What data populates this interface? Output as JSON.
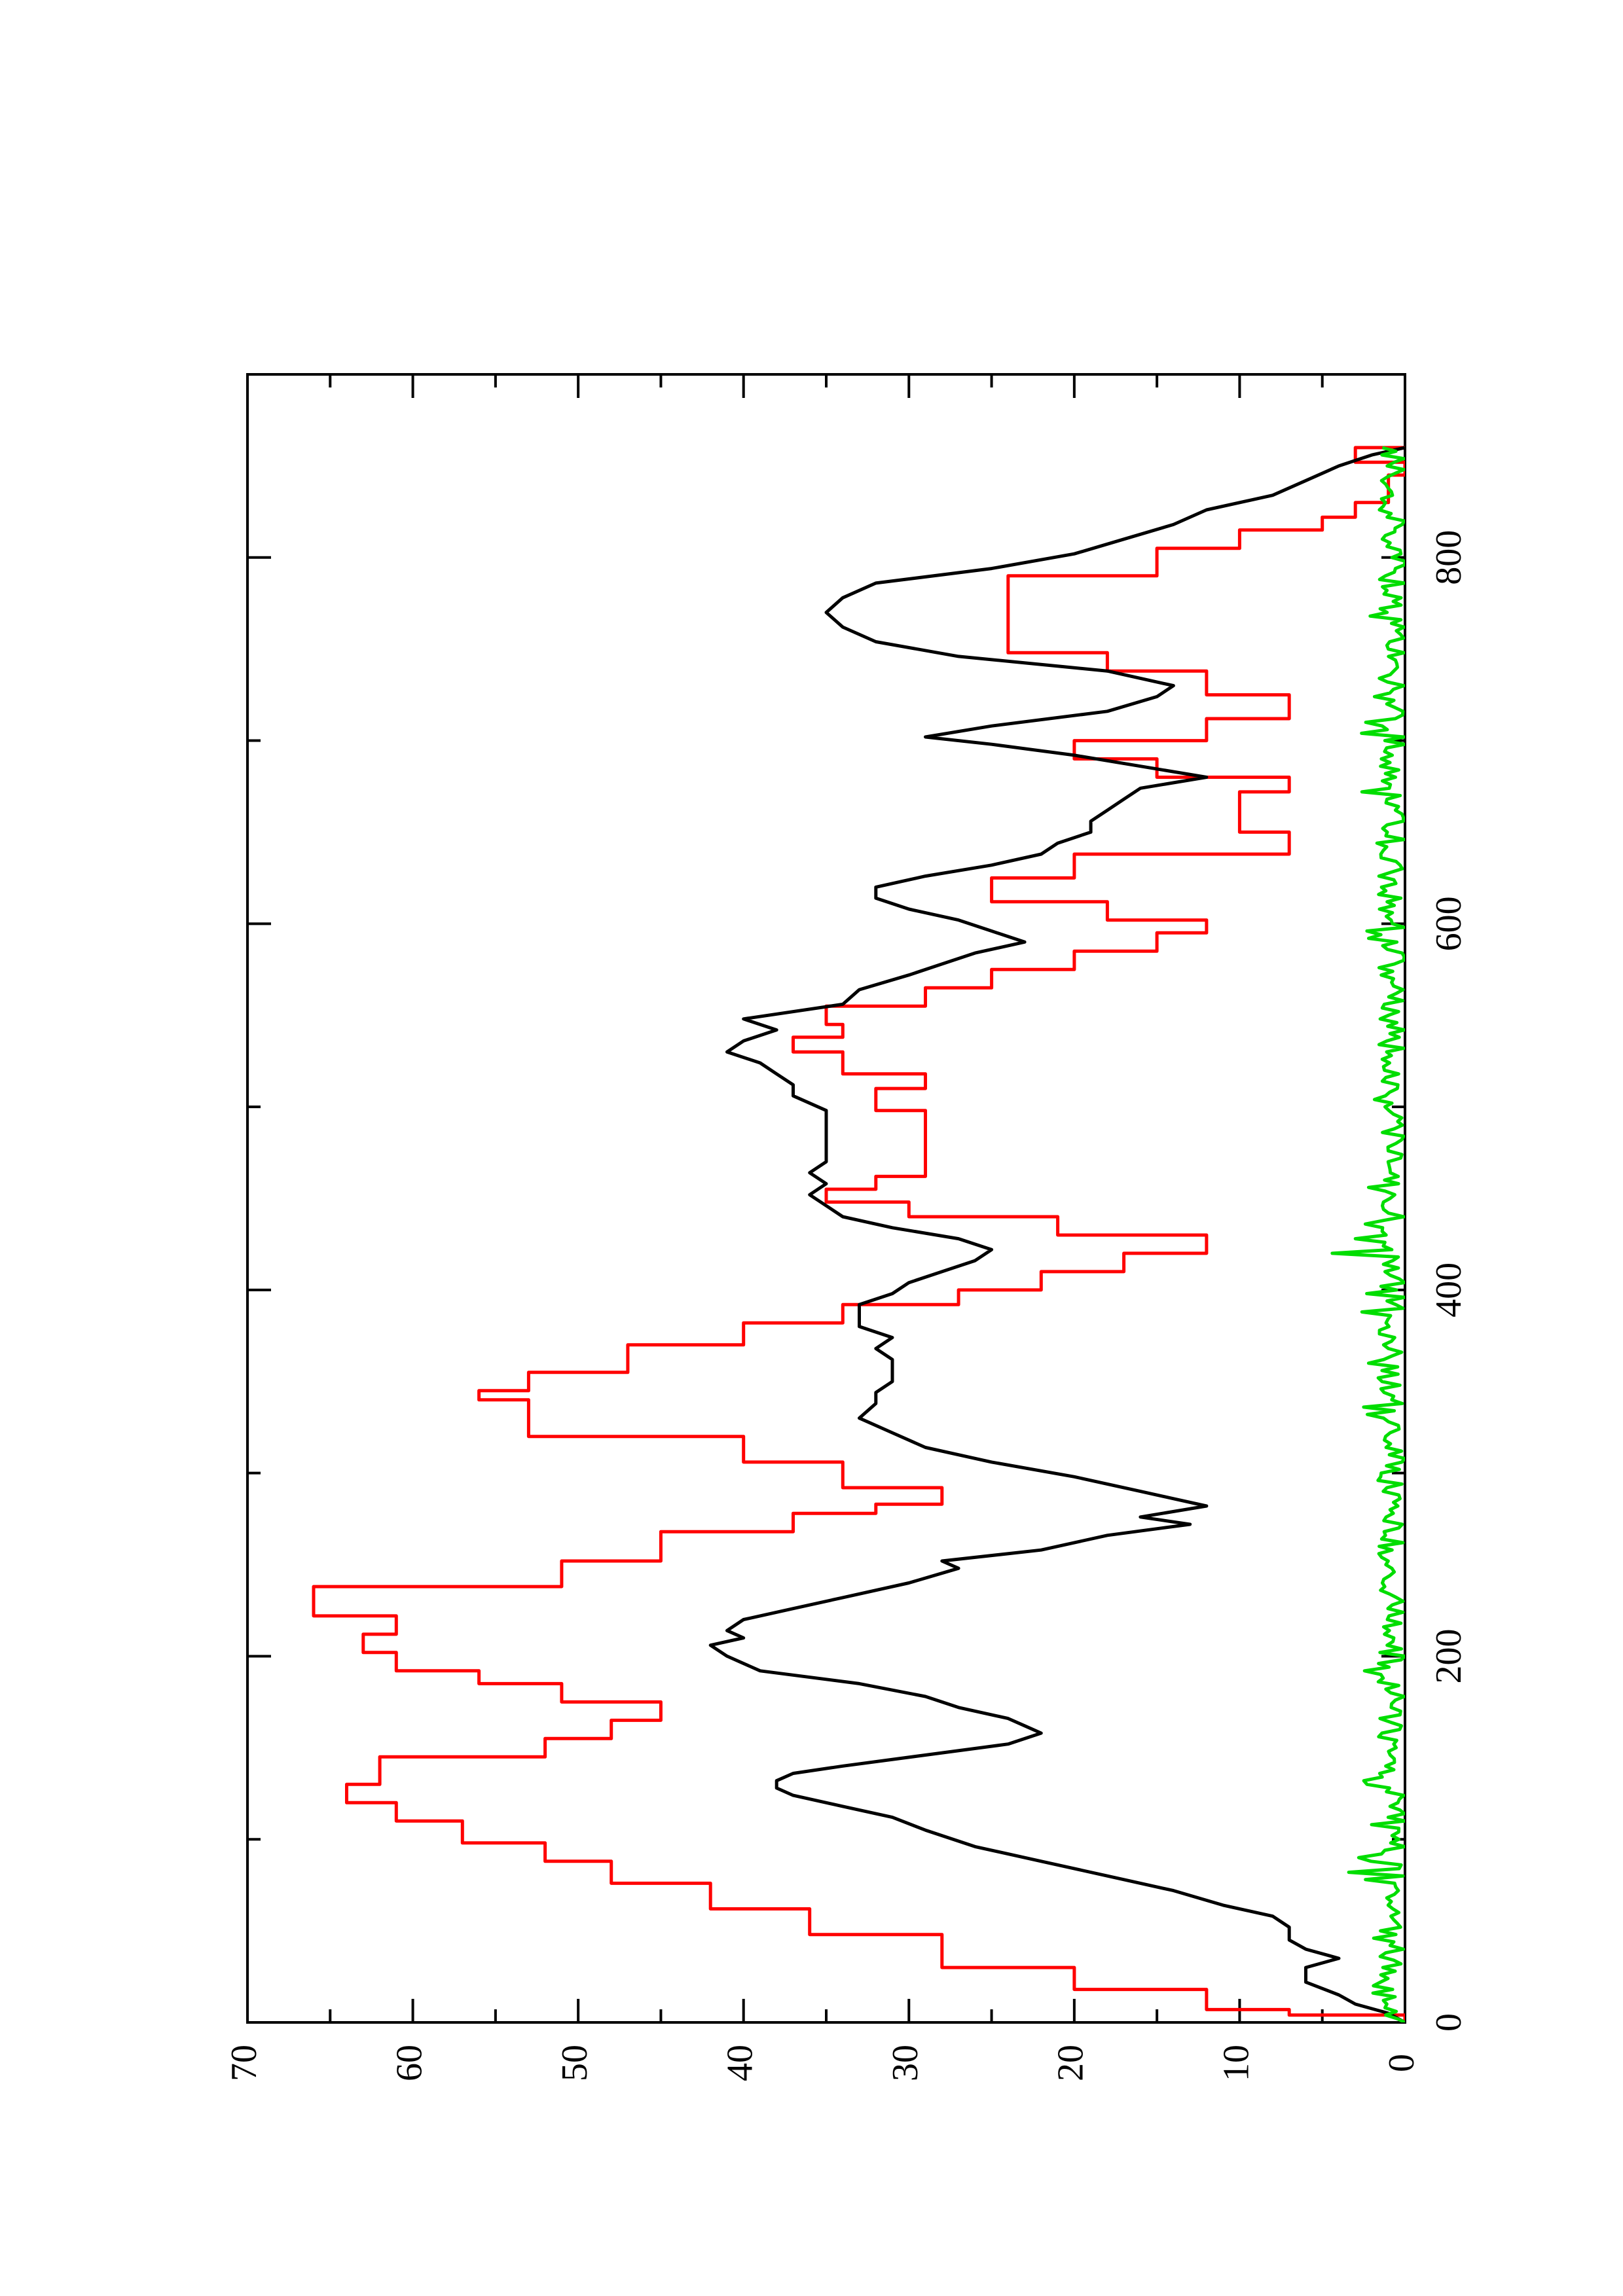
{
  "chart_data": {
    "type": "line",
    "orientation": "rotated-90-ccw",
    "title": "",
    "xlabel": "",
    "ylabel": "",
    "grid": false,
    "legend": "none",
    "xlim": [
      0,
      900
    ],
    "ylim": [
      0,
      70
    ],
    "x_ticks": [
      0,
      200,
      400,
      600,
      800
    ],
    "x_tick_labels": [
      "0",
      "200",
      "400",
      "600",
      "800"
    ],
    "x_minor_ticks": [
      100,
      300,
      500,
      700
    ],
    "y_ticks": [
      0,
      10,
      20,
      30,
      40,
      50,
      60,
      70
    ],
    "y_tick_labels": [
      "0",
      "10",
      "20",
      "30",
      "40",
      "50",
      "60",
      "70"
    ],
    "y_minor_ticks": [
      5,
      15,
      25,
      35,
      45,
      55,
      65
    ],
    "series": [
      {
        "color": "#ff0000",
        "step": true,
        "x": [
          0,
          4,
          7,
          18,
          30,
          48,
          62,
          76,
          88,
          98,
          110,
          120,
          130,
          145,
          155,
          165,
          175,
          185,
          192,
          202,
          212,
          222,
          238,
          252,
          268,
          278,
          283,
          292,
          306,
          320,
          340,
          345,
          355,
          370,
          382,
          392,
          400,
          410,
          420,
          430,
          440,
          448,
          455,
          462,
          470,
          478,
          485,
          498,
          510,
          518,
          530,
          538,
          545,
          555,
          565,
          575,
          585,
          595,
          602,
          612,
          625,
          638,
          650,
          660,
          672,
          680,
          690,
          700,
          712,
          725,
          738,
          748,
          760,
          775,
          790,
          805,
          815,
          822,
          830,
          845,
          852,
          860
        ],
        "y": [
          0,
          7,
          12,
          20,
          28,
          36,
          42,
          48,
          52,
          57,
          61,
          64,
          62,
          52,
          48,
          45,
          51,
          56,
          61,
          63,
          61,
          66,
          51,
          45,
          37,
          32,
          28,
          34,
          40,
          53,
          56,
          53,
          47,
          40,
          34,
          27,
          22,
          17,
          12,
          21,
          30,
          35,
          32,
          29,
          29,
          29,
          29,
          32,
          29,
          34,
          37,
          34,
          35,
          29,
          25,
          20,
          15,
          12,
          18,
          25,
          20,
          7,
          10,
          10,
          7,
          15,
          20,
          12,
          7,
          12,
          18,
          24,
          24,
          24,
          15,
          10,
          5,
          3,
          1,
          0,
          3,
          0
        ]
      },
      {
        "color": "#000000",
        "step": false,
        "x": [
          0,
          5,
          10,
          15,
          22,
          30,
          35,
          40,
          45,
          52,
          58,
          64,
          72,
          80,
          88,
          96,
          105,
          112,
          118,
          124,
          128,
          132,
          136,
          140,
          146,
          152,
          158,
          162,
          166,
          172,
          178,
          185,
          192,
          200,
          206,
          210,
          214,
          220,
          226,
          232,
          240,
          248,
          252,
          258,
          266,
          272,
          276,
          282,
          290,
          298,
          306,
          314,
          322,
          330,
          338,
          344,
          350,
          356,
          362,
          368,
          374,
          380,
          386,
          392,
          398,
          404,
          410,
          416,
          422,
          428,
          434,
          440,
          446,
          452,
          458,
          464,
          470,
          476,
          482,
          490,
          498,
          506,
          512,
          518,
          524,
          530,
          536,
          542,
          548,
          556,
          564,
          572,
          578,
          584,
          590,
          596,
          602,
          608,
          614,
          620,
          626,
          632,
          638,
          644,
          650,
          656,
          662,
          668,
          674,
          680,
          686,
          692,
          698,
          702,
          708,
          716,
          724,
          730,
          738,
          746,
          754,
          762,
          770,
          778,
          786,
          794,
          802,
          810,
          818,
          826,
          834,
          842,
          850,
          856,
          860
        ],
        "y": [
          0,
          1,
          3,
          4,
          6,
          6,
          4,
          6,
          7,
          7,
          8,
          11,
          14,
          18,
          22,
          26,
          29,
          31,
          34,
          37,
          38,
          38,
          37,
          34,
          29,
          24,
          22,
          23,
          24,
          27,
          29,
          33,
          39,
          41,
          42,
          40,
          41,
          40,
          37,
          34,
          30,
          27,
          28,
          22,
          18,
          13,
          16,
          12,
          16,
          20,
          25,
          29,
          31,
          33,
          32,
          32,
          31,
          31,
          31,
          32,
          31,
          33,
          33,
          33,
          31,
          30,
          28,
          26,
          25,
          27,
          31,
          34,
          35,
          36,
          35,
          36,
          35,
          35,
          35,
          35,
          35,
          37,
          37,
          38,
          39,
          41,
          40,
          38,
          40,
          34,
          33,
          30,
          28,
          26,
          23,
          25,
          27,
          30,
          32,
          32,
          29,
          25,
          22,
          21,
          19,
          19,
          18,
          17,
          16,
          12,
          16,
          20,
          25,
          29,
          25,
          18,
          15,
          14,
          18,
          27,
          32,
          34,
          35,
          34,
          32,
          25,
          20,
          17,
          14,
          12,
          8,
          6,
          4,
          2,
          0
        ]
      },
      {
        "color": "#00dd00",
        "step": false,
        "noise": true,
        "x_range": [
          0,
          860
        ],
        "y_range": [
          0,
          3.5
        ],
        "spikes": [
          {
            "x": 82,
            "y": 3.4
          },
          {
            "x": 90,
            "y": 2.8
          },
          {
            "x": 336,
            "y": 2.5
          },
          {
            "x": 360,
            "y": 2.2
          },
          {
            "x": 388,
            "y": 2.6
          },
          {
            "x": 420,
            "y": 4.4
          },
          {
            "x": 428,
            "y": 3.0
          },
          {
            "x": 436,
            "y": 2.4
          },
          {
            "x": 456,
            "y": 2.2
          },
          {
            "x": 596,
            "y": 2.3
          },
          {
            "x": 672,
            "y": 2.6
          }
        ]
      }
    ]
  }
}
